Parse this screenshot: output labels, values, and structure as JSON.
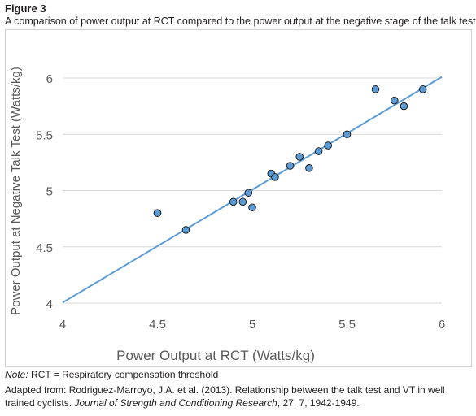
{
  "figure": {
    "label": "Figure 3",
    "caption": "A comparison of power output at RCT compared to the power output at the negative stage of the talk test"
  },
  "note": {
    "prefix": "Note:",
    "text": " RCT = Respiratory compensation threshold"
  },
  "source": {
    "part1": "Adapted from: Rodriguez-Marroyo, J.A. et al. (2013). Relationship between the talk test and VT in well trained cyclists. ",
    "journal": "Journal of Strength and Conditioning Research",
    "part2": ", 27, 7, 1942-1949."
  },
  "chart_data": {
    "type": "scatter",
    "xlabel": "Power Output at RCT (Watts/kg)",
    "ylabel": "Power Output at Negative Talk Test (Watts/kg)",
    "xlim": [
      4,
      6
    ],
    "ylim": [
      4,
      6
    ],
    "x_ticks": [
      "4",
      "4.5",
      "5",
      "5.5",
      "6"
    ],
    "y_ticks": [
      "4",
      "4.5",
      "5",
      "5.5",
      "6"
    ],
    "grid": "horizontal",
    "points": [
      {
        "x": 4.5,
        "y": 4.8
      },
      {
        "x": 4.65,
        "y": 4.65
      },
      {
        "x": 4.9,
        "y": 4.9
      },
      {
        "x": 4.95,
        "y": 4.9
      },
      {
        "x": 4.98,
        "y": 4.98
      },
      {
        "x": 5.0,
        "y": 4.85
      },
      {
        "x": 5.1,
        "y": 5.15
      },
      {
        "x": 5.12,
        "y": 5.12
      },
      {
        "x": 5.2,
        "y": 5.22
      },
      {
        "x": 5.25,
        "y": 5.3
      },
      {
        "x": 5.3,
        "y": 5.2
      },
      {
        "x": 5.35,
        "y": 5.35
      },
      {
        "x": 5.4,
        "y": 5.4
      },
      {
        "x": 5.5,
        "y": 5.5
      },
      {
        "x": 5.65,
        "y": 5.9
      },
      {
        "x": 5.75,
        "y": 5.8
      },
      {
        "x": 5.8,
        "y": 5.75
      },
      {
        "x": 5.9,
        "y": 5.9
      }
    ],
    "fit_line": {
      "x": [
        4,
        6
      ],
      "y": [
        4.005,
        6.01
      ]
    },
    "colors": {
      "marker_fill": "#5b9bd5",
      "marker_edge": "#1f1f1f",
      "fit_line": "#5b9bd5",
      "grid": "#d9d9d9"
    }
  }
}
